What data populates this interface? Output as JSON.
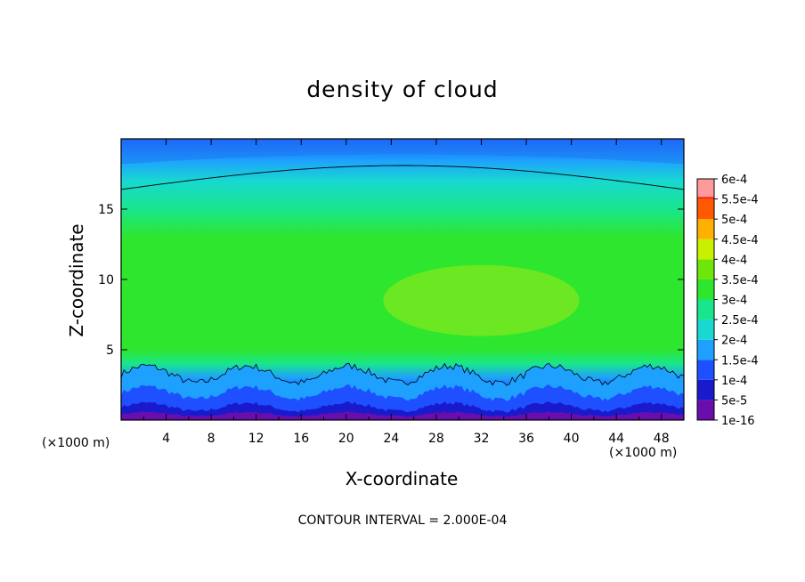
{
  "chart_data": {
    "type": "heatmap",
    "title": "density of cloud",
    "xlabel": "X-coordinate",
    "ylabel": "Z-coordinate",
    "x_units": "(×1000 m)",
    "xlim": [
      0,
      50
    ],
    "ylim": [
      0,
      20
    ],
    "x_ticks": [
      "4",
      "8",
      "12",
      "16",
      "20",
      "24",
      "28",
      "32",
      "36",
      "40",
      "44",
      "48"
    ],
    "y_ticks": [
      "5",
      "10",
      "15"
    ],
    "colorbar": {
      "labels": [
        "1e-16",
        "5e-5",
        "1e-4",
        "1.5e-4",
        "2e-4",
        "2.5e-4",
        "3e-4",
        "3.5e-4",
        "4e-4",
        "4.5e-4",
        "5e-4",
        "5.5e-4",
        "6e-4"
      ],
      "colors": [
        "#6a0dad",
        "#1a1acd",
        "#1e50ff",
        "#1ea0ff",
        "#18d8d0",
        "#19e68c",
        "#2ee62e",
        "#6ee60a",
        "#c8f000",
        "#ffb000",
        "#ff5a00",
        "#ff1e1e",
        "#ff9a9a"
      ]
    },
    "contour_interval_note": "CONTOUR INTERVAL = 2.000E-04",
    "field_profile_z": [
      0,
      1,
      2,
      3,
      4,
      5,
      8,
      10,
      13,
      15,
      17,
      18.5,
      20
    ],
    "field_profile_value": [
      1e-16,
      5e-05,
      0.00012,
      0.00018,
      0.00026,
      0.00031,
      0.00033,
      0.00033,
      0.00031,
      0.00025,
      0.0002,
      0.00015,
      0.0001
    ]
  }
}
